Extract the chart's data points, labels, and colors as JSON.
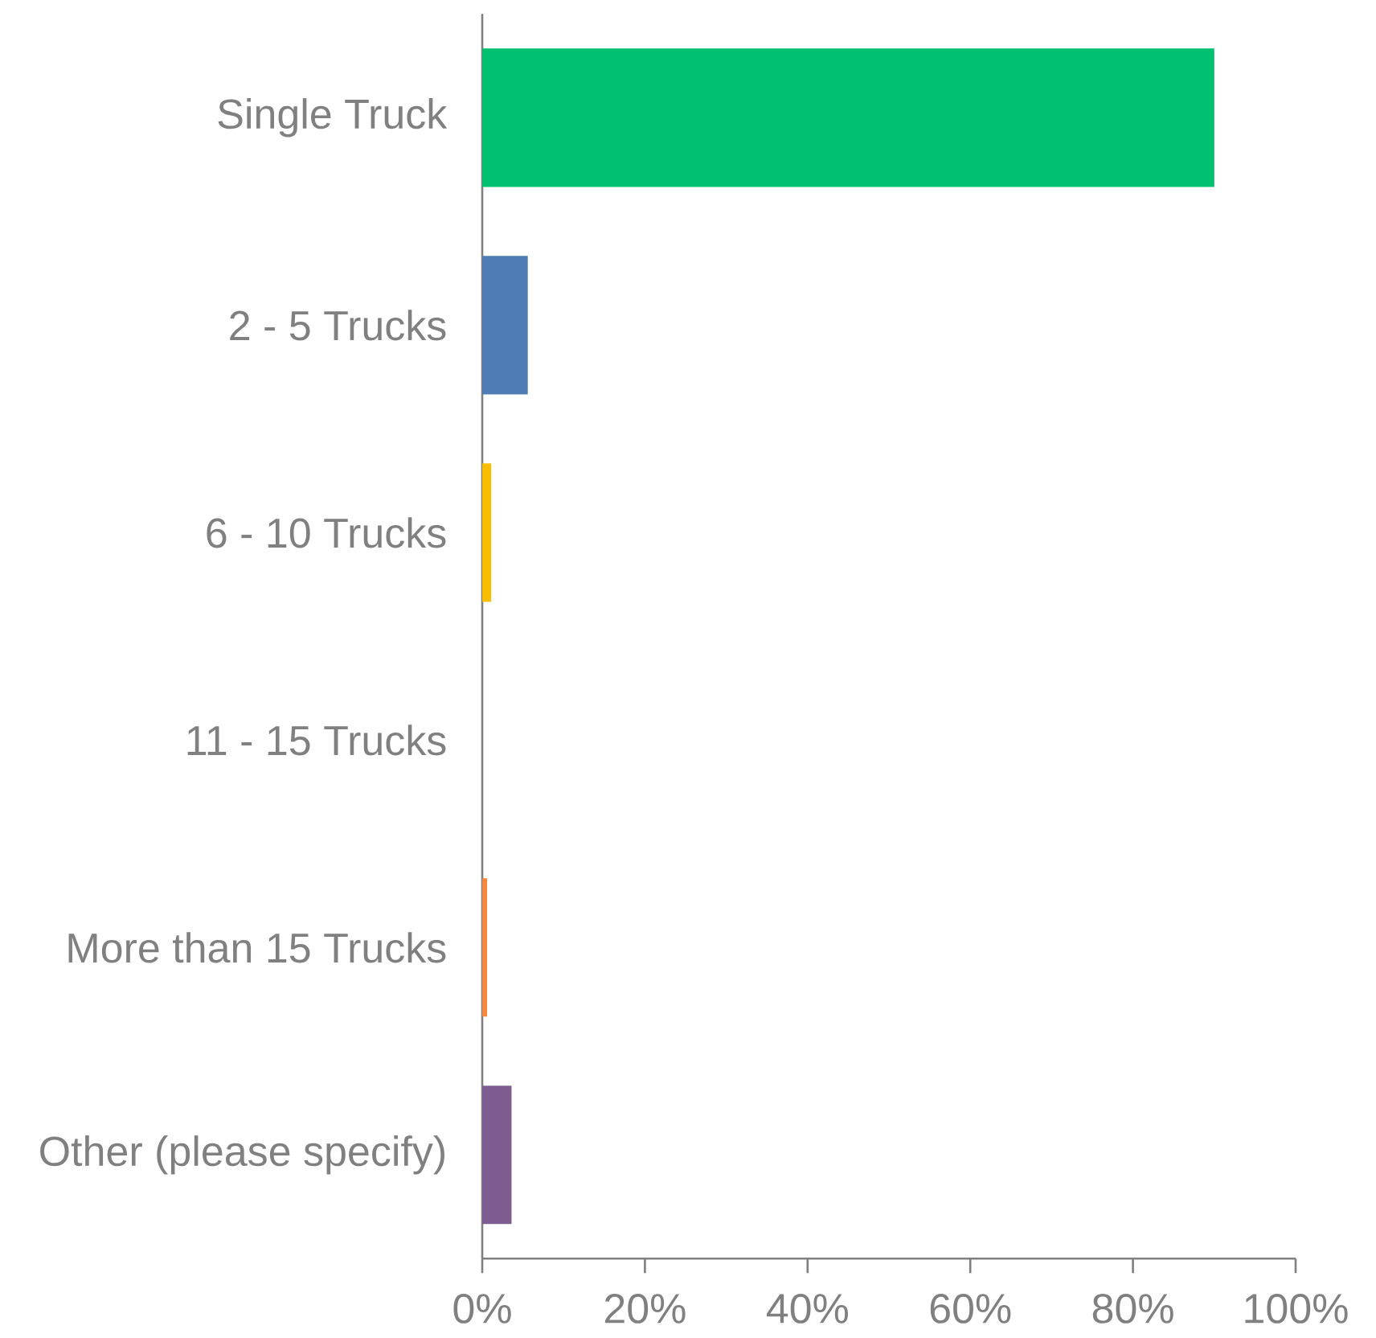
{
  "chart_data": {
    "type": "bar",
    "orientation": "horizontal",
    "categories": [
      "Single Truck",
      "2 - 5 Trucks",
      "6 - 10 Trucks",
      "11 - 15 Trucks",
      "More than 15 Trucks",
      "Other (please specify)"
    ],
    "values": [
      90,
      5.6,
      1.1,
      0,
      0.6,
      3.6
    ],
    "colors": [
      "#00bf6f",
      "#507cb6",
      "#f9be00",
      "#6bc8cd",
      "#f7873e",
      "#7d5c91"
    ],
    "xlim": [
      0,
      100
    ],
    "xticks": [
      {
        "value": 0,
        "label": "0%"
      },
      {
        "value": 20,
        "label": "20%"
      },
      {
        "value": 40,
        "label": "40%"
      },
      {
        "value": 60,
        "label": "60%"
      },
      {
        "value": 80,
        "label": "80%"
      },
      {
        "value": 100,
        "label": "100%"
      }
    ],
    "grid": false
  }
}
